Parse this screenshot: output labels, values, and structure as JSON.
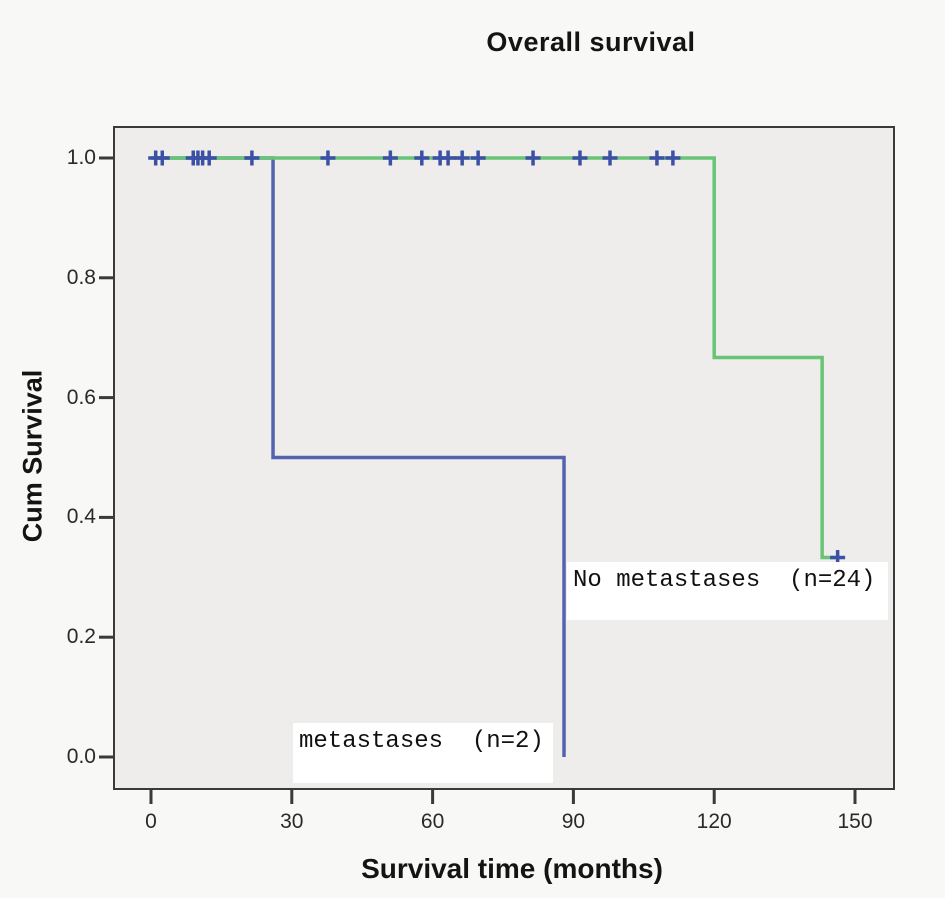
{
  "chart_data": {
    "type": "line",
    "subtype": "kaplan-meier-step",
    "title": "Overall survival",
    "xlabel": "Survival time (months)",
    "ylabel": "Cum Survival",
    "xlim": [
      0,
      150
    ],
    "ylim": [
      0.0,
      1.0
    ],
    "x_ticks": [
      0,
      30,
      60,
      90,
      120,
      150
    ],
    "y_ticks": [
      "0.0",
      "0.2",
      "0.4",
      "0.6",
      "0.8",
      "1.0"
    ],
    "grid": false,
    "legend_position": "in-plot text annotations",
    "plot_background": "#eeedeb",
    "frame_color": "#3a3a3a",
    "censor_color": "#3c50a6",
    "series": [
      {
        "name": "metastases",
        "label": "metastases  (n=2)",
        "color": "#5264ae",
        "n": 2,
        "steps": [
          [
            0,
            1.0
          ],
          [
            26,
            1.0
          ],
          [
            26,
            0.5
          ],
          [
            88,
            0.5
          ],
          [
            88,
            0.0
          ]
        ],
        "censored": []
      },
      {
        "name": "No metastases",
        "label": "No metastases  (n=24)",
        "color": "#68c476",
        "n": 24,
        "steps": [
          [
            0,
            1.0
          ],
          [
            120,
            1.0
          ],
          [
            120,
            0.667
          ],
          [
            143,
            0.667
          ],
          [
            143,
            0.333
          ],
          [
            146.8,
            0.333
          ]
        ],
        "censored": [
          [
            1,
            1.0
          ],
          [
            2.4,
            1.0
          ],
          [
            9,
            1.0
          ],
          [
            10,
            1.0
          ],
          [
            11,
            1.0
          ],
          [
            12.4,
            1.0
          ],
          [
            21.5,
            1.0
          ],
          [
            37.7,
            1.0
          ],
          [
            51,
            1.0
          ],
          [
            57.7,
            1.0
          ],
          [
            61.6,
            1.0
          ],
          [
            63.3,
            1.0
          ],
          [
            66.3,
            1.0
          ],
          [
            69.7,
            1.0
          ],
          [
            81.4,
            1.0
          ],
          [
            91.4,
            1.0
          ],
          [
            97.8,
            1.0
          ],
          [
            107.8,
            1.0
          ],
          [
            111.2,
            1.0
          ],
          [
            146.3,
            0.333
          ]
        ]
      }
    ]
  }
}
